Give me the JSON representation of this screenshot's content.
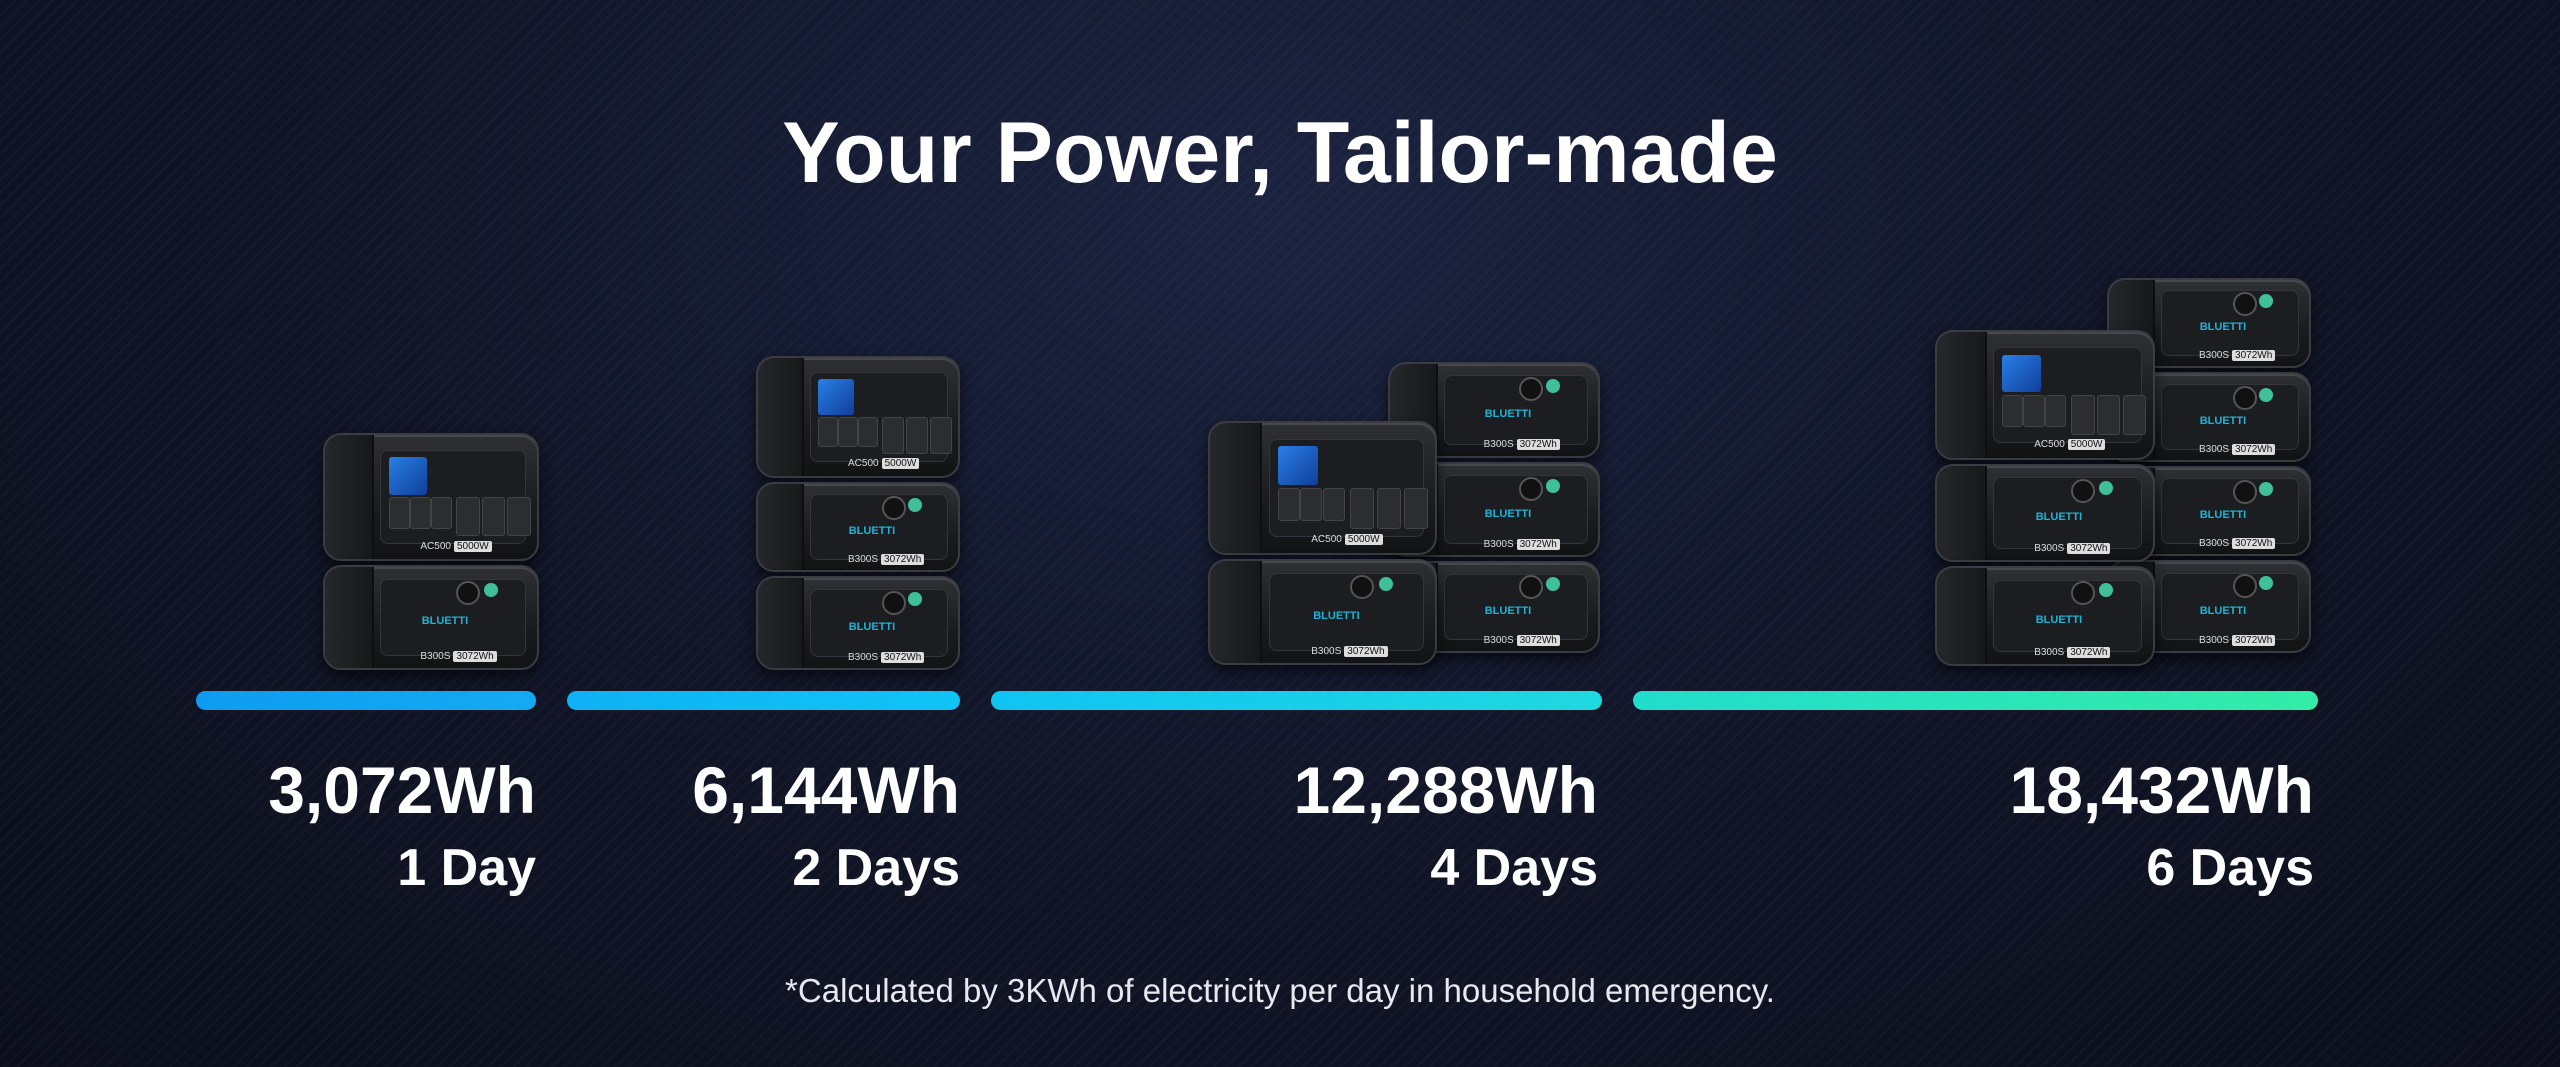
{
  "title": "Your Power, Tailor-made",
  "colors": {
    "bar_1": "#12a6f0",
    "bar_2": "#0fbdf5",
    "bar_3": "#18d2e8",
    "bar_4": "#2ee8b0",
    "background": "#111629"
  },
  "products": {
    "brand": "BLUETTI",
    "inverter": {
      "model": "AC500",
      "rating": "5000W"
    },
    "battery": {
      "model": "B300S",
      "capacity": "3072Wh"
    }
  },
  "tiers": [
    {
      "capacity": "3,072Wh",
      "duration": "1 Day",
      "inverters": 1,
      "batteries": 1
    },
    {
      "capacity": "6,144Wh",
      "duration": "2 Days",
      "inverters": 1,
      "batteries": 2
    },
    {
      "capacity": "12,288Wh",
      "duration": "4 Days",
      "inverters": 1,
      "batteries": 4
    },
    {
      "capacity": "18,432Wh",
      "duration": "6 Days",
      "inverters": 1,
      "batteries": 6
    }
  ],
  "footnote": "*Calculated by 3KWh of electricity per day in household emergency."
}
